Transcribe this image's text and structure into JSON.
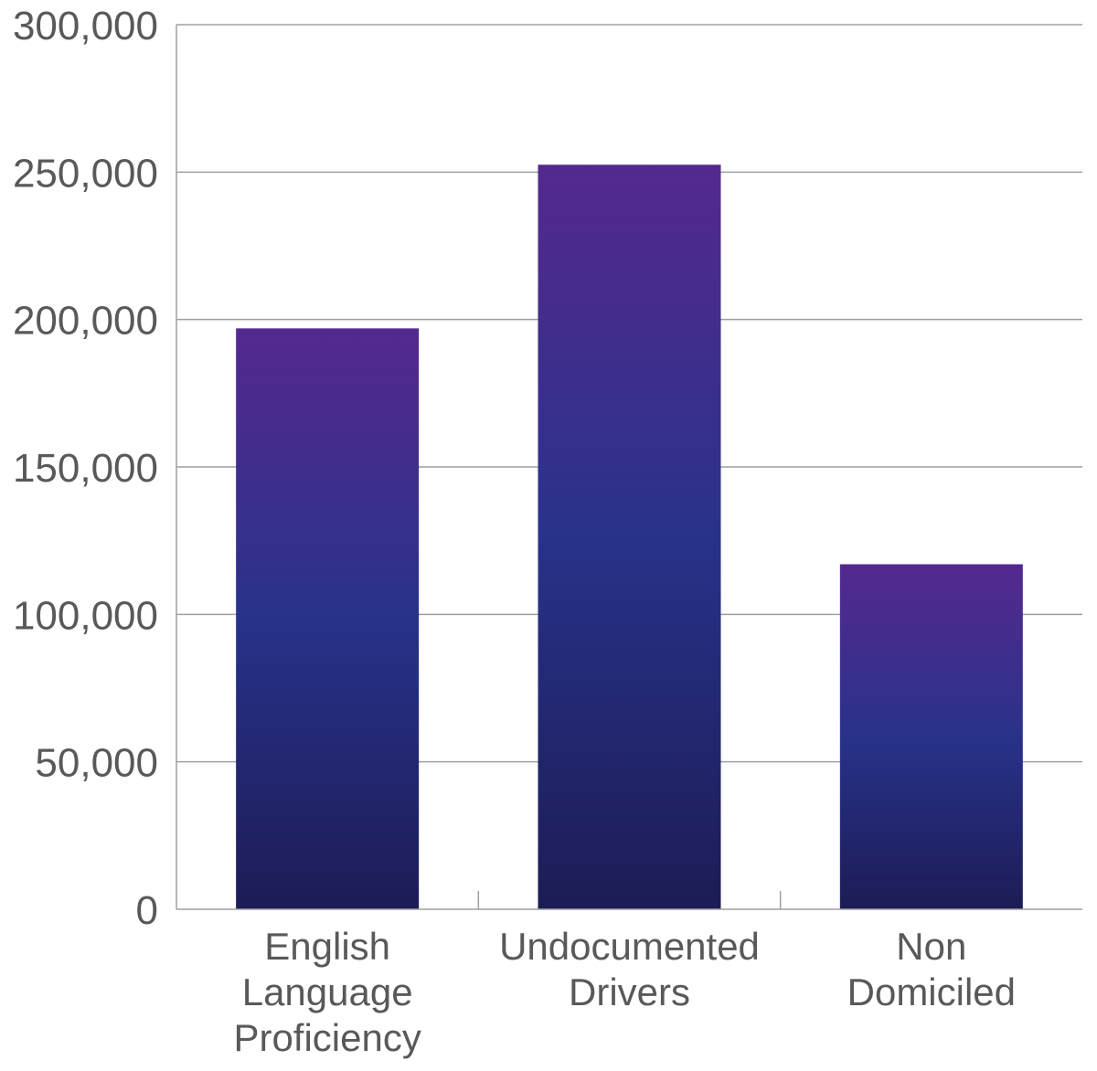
{
  "chart_data": {
    "type": "bar",
    "title": "",
    "xlabel": "",
    "ylabel": "",
    "categories": [
      [
        "English",
        "Language",
        "Proficiency"
      ],
      [
        "Undocumented",
        "Drivers"
      ],
      [
        "Non",
        "Domiciled"
      ]
    ],
    "values": [
      197000,
      252500,
      117000
    ],
    "ylim": [
      0,
      300000
    ],
    "yticks": [
      0,
      50000,
      100000,
      150000,
      200000,
      250000,
      300000
    ],
    "ytick_labels": [
      "0",
      "50,000",
      "100,000",
      "150,000",
      "200,000",
      "250,000",
      "300,000"
    ],
    "grid": true,
    "legend": "none",
    "colors": {
      "bar_top": "#55298f",
      "bar_mid": "#29328a",
      "bar_bottom": "#1c1c55",
      "grid": "#9d9fa2",
      "text": "#58595b"
    }
  }
}
